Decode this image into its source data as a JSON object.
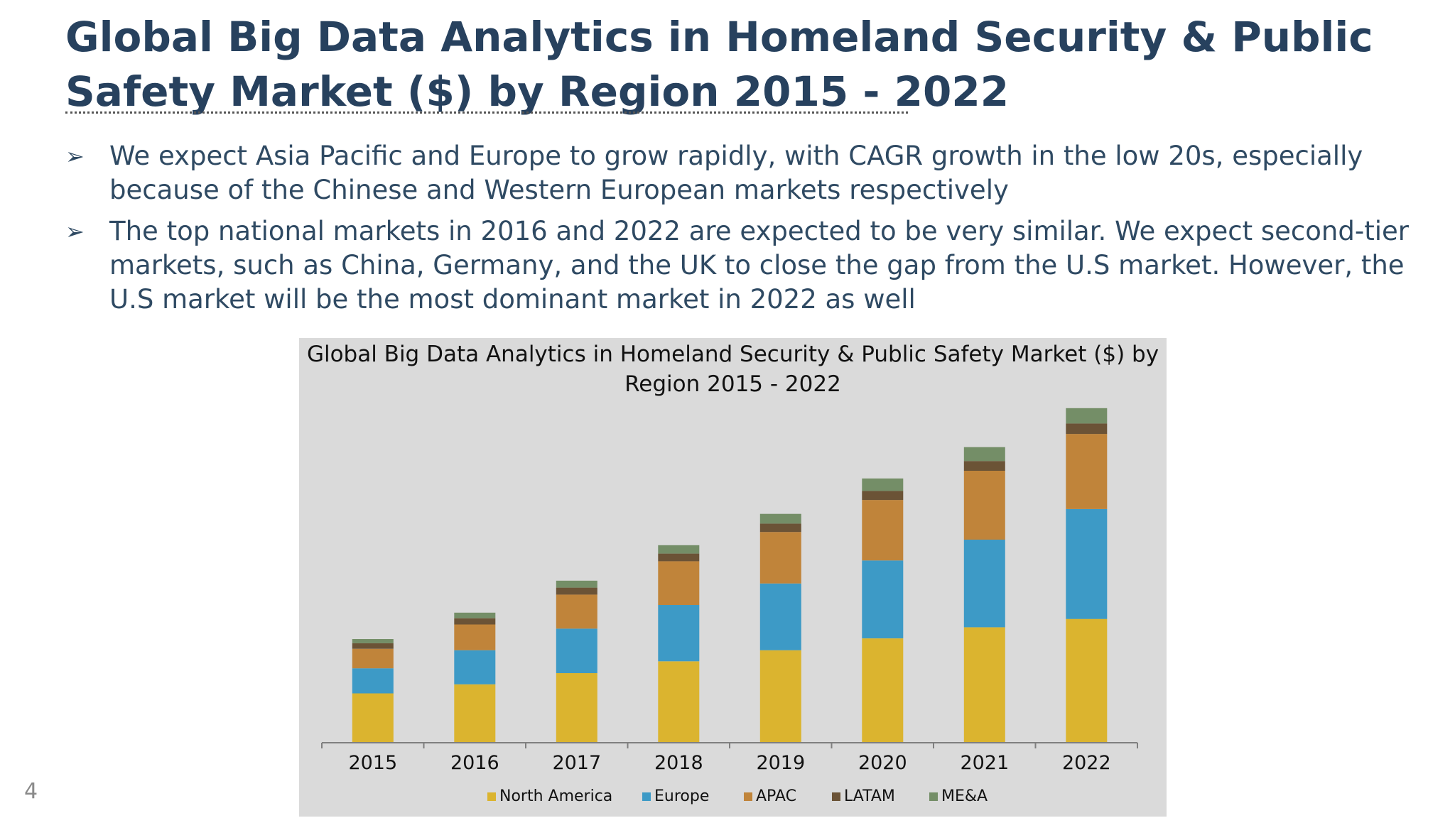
{
  "slide": {
    "title": "Global Big Data Analytics in Homeland Security & Public Safety Market ($) by Region 2015 - 2022",
    "bullets": [
      "We expect Asia Pacific and Europe to grow rapidly, with CAGR growth in the low 20s, especially because of the Chinese and Western European markets respectively",
      "The top national markets in 2016 and 2022 are expected to be very similar. We expect second-tier markets, such as China, Germany, and the UK to close the gap from the U.S market. However, the U.S market will be the most dominant market in 2022 as well"
    ],
    "bullet_icon": "➢",
    "page_number": "4"
  },
  "chart_data": {
    "type": "bar",
    "stacked": true,
    "title": "Global Big Data Analytics in Homeland Security & Public Safety Market ($) by Region 2015 - 2022",
    "xlabel": "",
    "ylabel": "",
    "y_axis_labels_shown": false,
    "grid": false,
    "legend_position": "bottom",
    "categories": [
      "2015",
      "2016",
      "2017",
      "2018",
      "2019",
      "2020",
      "2021",
      "2022"
    ],
    "series": [
      {
        "name": "North America",
        "color": "#dbb42f",
        "values": [
          71,
          84,
          100,
          117,
          133,
          150,
          166,
          178
        ]
      },
      {
        "name": "Europe",
        "color": "#3d9ac6",
        "values": [
          36,
          49,
          64,
          81,
          96,
          112,
          126,
          158
        ]
      },
      {
        "name": "APAC",
        "color": "#c0843a",
        "values": [
          28,
          37,
          49,
          63,
          74,
          87,
          99,
          108
        ]
      },
      {
        "name": "LATAM",
        "color": "#6b5336",
        "values": [
          8,
          9,
          10,
          11,
          12,
          13,
          14,
          15
        ]
      },
      {
        "name": "ME&A",
        "color": "#748e67",
        "values": [
          6,
          8,
          10,
          12,
          14,
          18,
          20,
          22
        ]
      }
    ],
    "ylim": [
      0,
      490
    ]
  }
}
